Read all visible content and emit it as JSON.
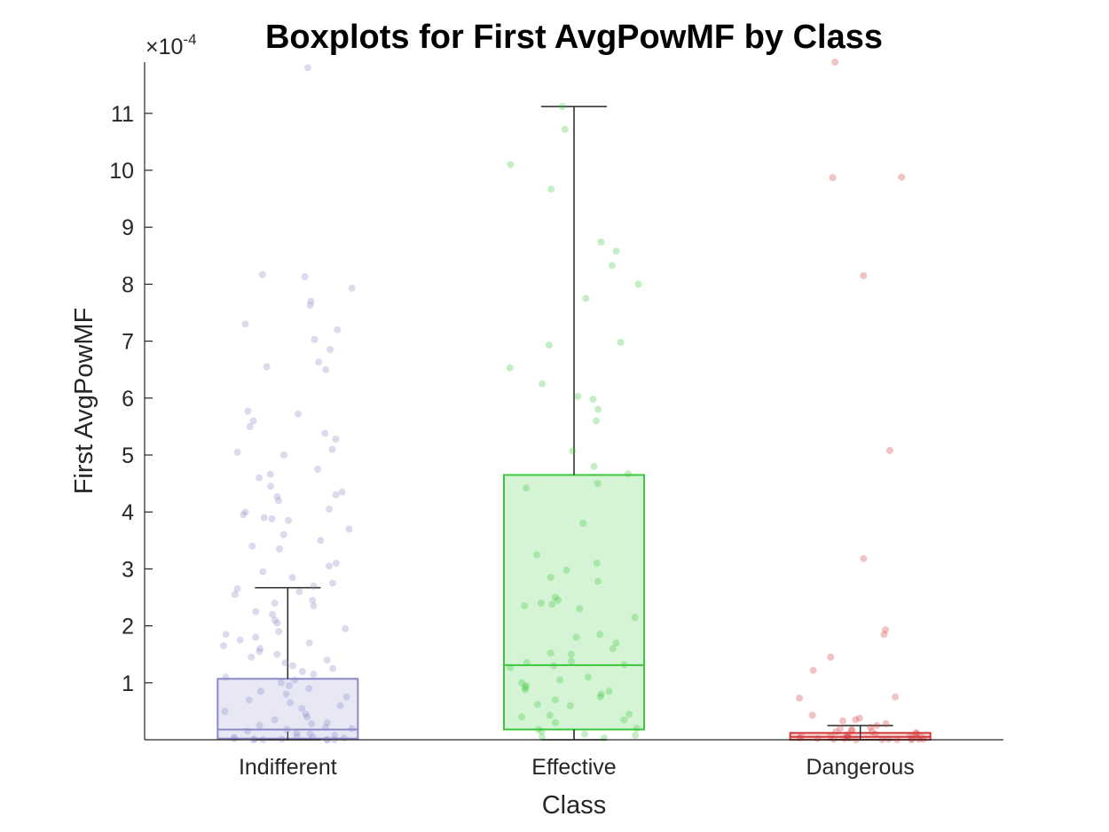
{
  "chart_data": {
    "type": "boxplot",
    "title": "Boxplots for First AvgPowMF by Class",
    "xlabel": "Class",
    "ylabel": "First AvgPowMF",
    "exponent_label": {
      "base": "×10",
      "power": "-4"
    },
    "ylim": [
      0,
      11.9
    ],
    "yticks": [
      1,
      2,
      3,
      4,
      5,
      6,
      7,
      8,
      9,
      10,
      11
    ],
    "categories": [
      "Indifferent",
      "Effective",
      "Dangerous"
    ],
    "boxes": [
      {
        "name": "Indifferent",
        "color": "#8B89C8",
        "fill": "#E8E8F5",
        "q1": 0.02,
        "median": 0.18,
        "q3": 1.07,
        "whisker_low": 0,
        "whisker_high": 2.67,
        "points": [
          11.8,
          8.17,
          8.13,
          7.93,
          7.7,
          7.63,
          7.3,
          7.2,
          7.03,
          6.85,
          6.63,
          6.55,
          6.5,
          5.77,
          5.72,
          5.6,
          5.5,
          5.38,
          5.28,
          5.1,
          5.05,
          5.0,
          4.75,
          4.66,
          4.6,
          4.45,
          4.35,
          4.3,
          4.27,
          4.2,
          4.05,
          4.0,
          3.95,
          3.9,
          3.88,
          3.85,
          3.7,
          3.6,
          3.5,
          3.4,
          3.35,
          3.1,
          3.05,
          2.95,
          2.85,
          2.75,
          2.7,
          2.65,
          2.6,
          2.55,
          2.45,
          2.4,
          2.35,
          2.25,
          2.2,
          2.1,
          2.05,
          1.95,
          1.9,
          1.85,
          1.8,
          1.75,
          1.7,
          1.65,
          1.6,
          1.55,
          1.5,
          1.45,
          1.4,
          1.35,
          1.3,
          1.25,
          1.2,
          1.15,
          1.1,
          1.05,
          1.0,
          0.95,
          0.9,
          0.85,
          0.8,
          0.75,
          0.7,
          0.65,
          0.6,
          0.55,
          0.5,
          0.45,
          0.4,
          0.35,
          0.3,
          0.28,
          0.25,
          0.22,
          0.2,
          0.18,
          0.15,
          0.12,
          0.1,
          0.08,
          0.06,
          0.05,
          0.04,
          0.03,
          0.02,
          0.01,
          0.01,
          0.0,
          0.0,
          0.0,
          0.0,
          0.0
        ]
      },
      {
        "name": "Effective",
        "color": "#3CC63C",
        "fill": "#D5F4D5",
        "q1": 0.18,
        "median": 1.31,
        "q3": 4.65,
        "whisker_low": 0,
        "whisker_high": 11.12,
        "points": [
          11.12,
          10.72,
          10.1,
          9.67,
          8.74,
          8.58,
          8.33,
          8.0,
          7.75,
          6.98,
          6.93,
          6.53,
          6.25,
          6.03,
          5.98,
          5.8,
          5.6,
          5.07,
          4.8,
          4.67,
          4.5,
          4.42,
          3.8,
          3.25,
          3.1,
          2.98,
          2.85,
          2.78,
          2.5,
          2.45,
          2.4,
          2.38,
          2.35,
          2.3,
          2.15,
          1.85,
          1.8,
          1.7,
          1.6,
          1.52,
          1.5,
          1.38,
          1.35,
          1.32,
          1.3,
          1.27,
          1.1,
          1.05,
          1.0,
          0.95,
          0.92,
          0.88,
          0.85,
          0.8,
          0.75,
          0.7,
          0.62,
          0.6,
          0.45,
          0.43,
          0.4,
          0.35,
          0.3,
          0.2,
          0.18,
          0.15,
          0.1,
          0.08,
          0.05,
          0.03
        ]
      },
      {
        "name": "Dangerous",
        "color": "#D13B3B",
        "fill": "#F6D8D8",
        "q1": 0.0,
        "median": 0.05,
        "q3": 0.12,
        "whisker_low": 0,
        "whisker_high": 0.25,
        "points": [
          11.9,
          9.88,
          9.87,
          8.15,
          5.08,
          3.18,
          1.93,
          1.85,
          1.45,
          1.22,
          0.75,
          0.73,
          0.43,
          0.38,
          0.35,
          0.33,
          0.28,
          0.25,
          0.22,
          0.2,
          0.18,
          0.16,
          0.15,
          0.14,
          0.12,
          0.11,
          0.1,
          0.09,
          0.08,
          0.07,
          0.06,
          0.05,
          0.05,
          0.04,
          0.04,
          0.03,
          0.03,
          0.02,
          0.02,
          0.02,
          0.01,
          0.01,
          0.01,
          0.01,
          0.0,
          0.0,
          0.0,
          0.0
        ]
      }
    ],
    "grid": false,
    "legend": "none"
  }
}
